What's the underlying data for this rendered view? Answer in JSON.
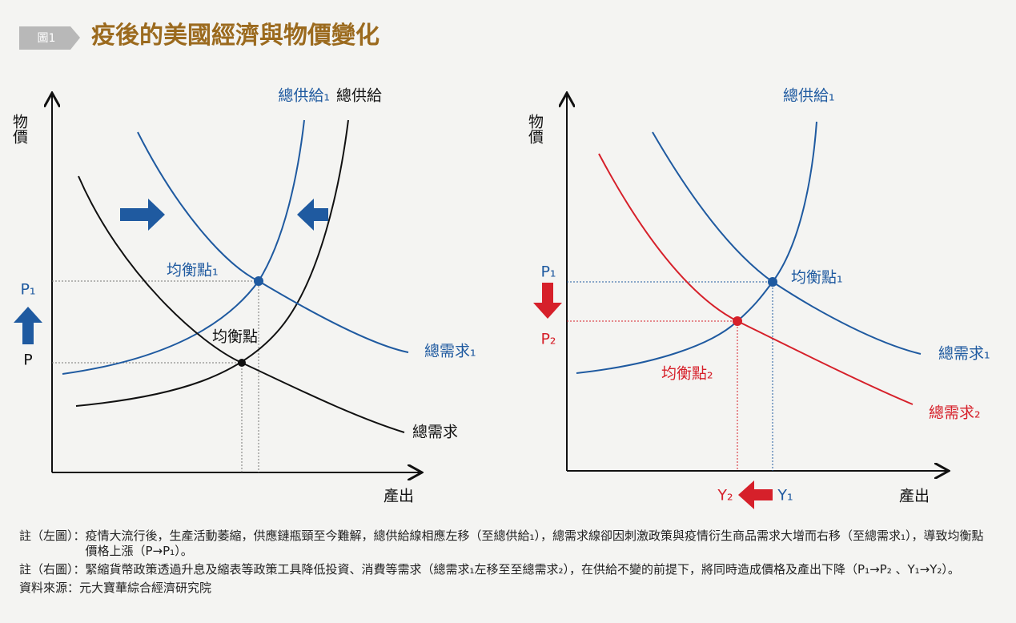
{
  "header": {
    "badge": "圖1",
    "title": "疫後的美國經濟與物價變化"
  },
  "left": {
    "y_axis": "物價",
    "x_axis": "產出",
    "supply1": "總供給₁",
    "supply": "總供給",
    "equilibrium1": "均衡點₁",
    "equilibrium": "均衡點",
    "demand1": "總需求₁",
    "demand": "總需求",
    "p1": "P₁",
    "p": "P"
  },
  "right": {
    "y_axis": "物價",
    "x_axis": "產出",
    "supply1": "總供給₁",
    "p1": "P₁",
    "p2": "P₂",
    "equilibrium1": "均衡點₁",
    "demand1": "總需求₁",
    "equilibrium2": "均衡點₂",
    "demand2": "總需求₂",
    "y2": "Y₂",
    "y1": "Y₁"
  },
  "notes": [
    {
      "label": "註（左圖）：",
      "text": "疫情大流行後，生產活動萎縮，供應鏈瓶頸至今難解，總供給線相應左移（至總供給₁），總需求線卻因刺激政策與疫情衍生商品需求大增而右移（至總需求₁），導致均衡點價格上漲（P→P₁）。"
    },
    {
      "label": "註（右圖）：",
      "text": "緊縮貨幣政策透過升息及縮表等政策工具降低投資、消費等需求（總需求₁左移至至總需求₂），在供給不變的前提下，將同時造成價格及產出下降（P₁→P₂ 、Y₁→Y₂）。"
    },
    {
      "label": "資料來源：",
      "text": "元大寶華綜合經濟研究院"
    }
  ]
}
